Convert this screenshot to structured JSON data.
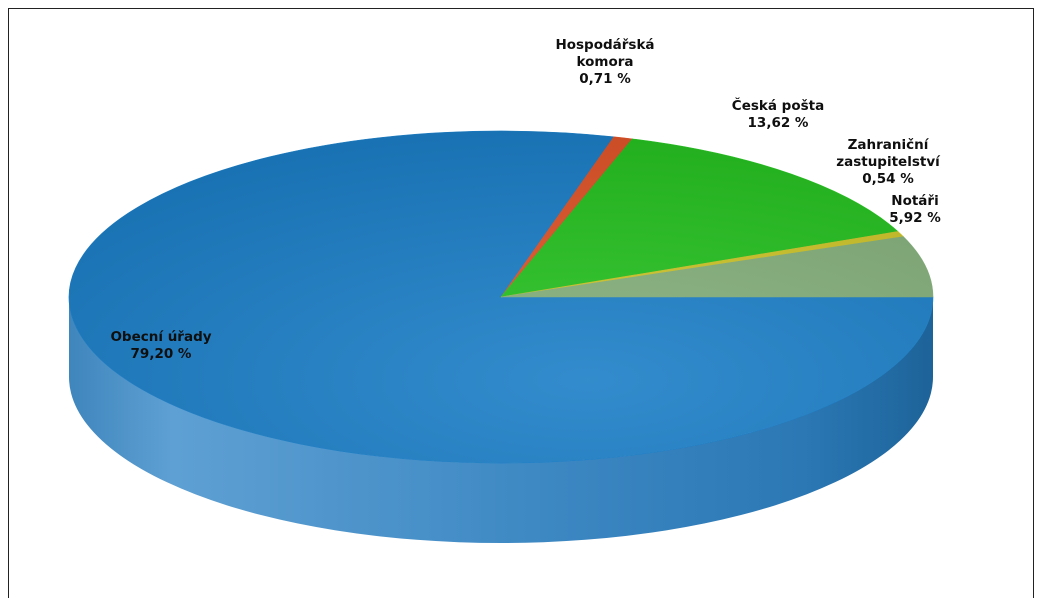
{
  "chart_data": {
    "type": "pie",
    "title": "",
    "slices": [
      {
        "name": "Obecní úřady",
        "value": 79.2,
        "label": [
          "Obecní úřady",
          "79,20 %"
        ],
        "color": "#1c7fc7"
      },
      {
        "name": "Hospodářská komora",
        "value": 0.71,
        "label": [
          "Hospodářská",
          "komora",
          "0,71 %"
        ],
        "color": "#e0552a"
      },
      {
        "name": "Česká pošta",
        "value": 13.62,
        "label": [
          "Česká pošta",
          "13,62 %"
        ],
        "color": "#26c221"
      },
      {
        "name": "Zahraniční zastupitelství",
        "value": 0.54,
        "label": [
          "Zahraniční",
          "zastupitelství",
          "0,54 %"
        ],
        "color": "#cfc52a"
      },
      {
        "name": "Notáři",
        "value": 5.92,
        "label": [
          "Notáři",
          "5,92 %"
        ],
        "color": "#85b07c"
      }
    ],
    "legend": "none",
    "style": "3d-pie"
  }
}
